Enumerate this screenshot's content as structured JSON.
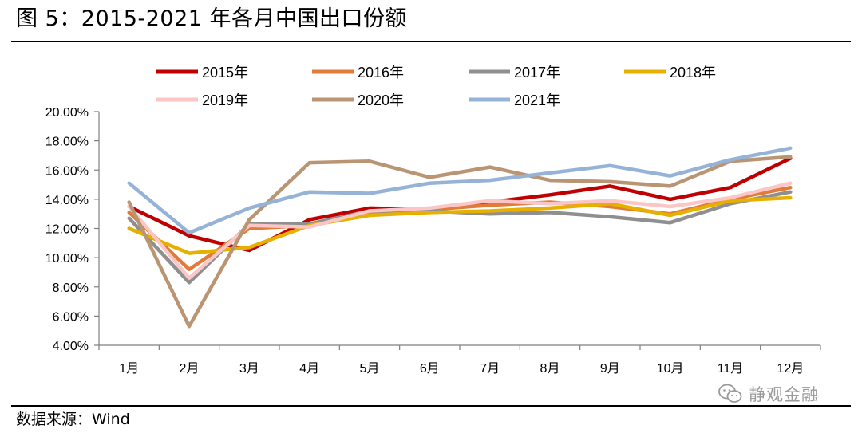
{
  "figure": {
    "title": "图 5：2015-2021 年各月中国出口份额",
    "source": "数据来源：Wind",
    "watermark": "静观金融",
    "watermark_icon": "wechat-icon"
  },
  "chart_data": {
    "type": "line",
    "x": [
      "1月",
      "2月",
      "3月",
      "4月",
      "5月",
      "6月",
      "7月",
      "8月",
      "9月",
      "10月",
      "11月",
      "12月"
    ],
    "y_ticks": [
      "4.00%",
      "6.00%",
      "8.00%",
      "10.00%",
      "12.00%",
      "14.00%",
      "16.00%",
      "18.00%",
      "20.00%"
    ],
    "ylim": [
      4,
      20
    ],
    "y_unit": "%",
    "grid": false,
    "legend_position": "top",
    "series": [
      {
        "name": "2015年",
        "color": "#C00000",
        "values": [
          13.5,
          11.5,
          10.5,
          12.6,
          13.4,
          13.3,
          13.8,
          14.3,
          14.9,
          14.0,
          14.8,
          16.8
        ]
      },
      {
        "name": "2016年",
        "color": "#E07B39",
        "values": [
          13.1,
          9.2,
          12.0,
          12.2,
          13.1,
          13.3,
          13.6,
          13.8,
          13.5,
          13.0,
          14.0,
          14.8
        ]
      },
      {
        "name": "2017年",
        "color": "#8F8F8F",
        "values": [
          12.7,
          8.3,
          12.3,
          12.3,
          13.2,
          13.2,
          13.0,
          13.1,
          12.8,
          12.4,
          13.7,
          14.5
        ]
      },
      {
        "name": "2018年",
        "color": "#E6B000",
        "values": [
          12.0,
          10.3,
          10.7,
          12.2,
          12.9,
          13.1,
          13.2,
          13.4,
          13.7,
          12.9,
          13.9,
          14.1
        ]
      },
      {
        "name": "2019年",
        "color": "#FCC6C6",
        "values": [
          13.5,
          8.6,
          12.2,
          12.1,
          13.2,
          13.4,
          13.9,
          13.7,
          13.9,
          13.5,
          14.1,
          15.1
        ]
      },
      {
        "name": "2020年",
        "color": "#BA9574",
        "values": [
          13.8,
          5.3,
          12.6,
          16.5,
          16.6,
          15.5,
          16.2,
          15.3,
          15.2,
          14.9,
          16.6,
          16.9
        ]
      },
      {
        "name": "2021年",
        "color": "#95B3D7",
        "values": [
          15.1,
          11.7,
          13.4,
          14.5,
          14.4,
          15.1,
          15.3,
          15.8,
          16.3,
          15.6,
          16.7,
          17.5
        ]
      }
    ]
  }
}
